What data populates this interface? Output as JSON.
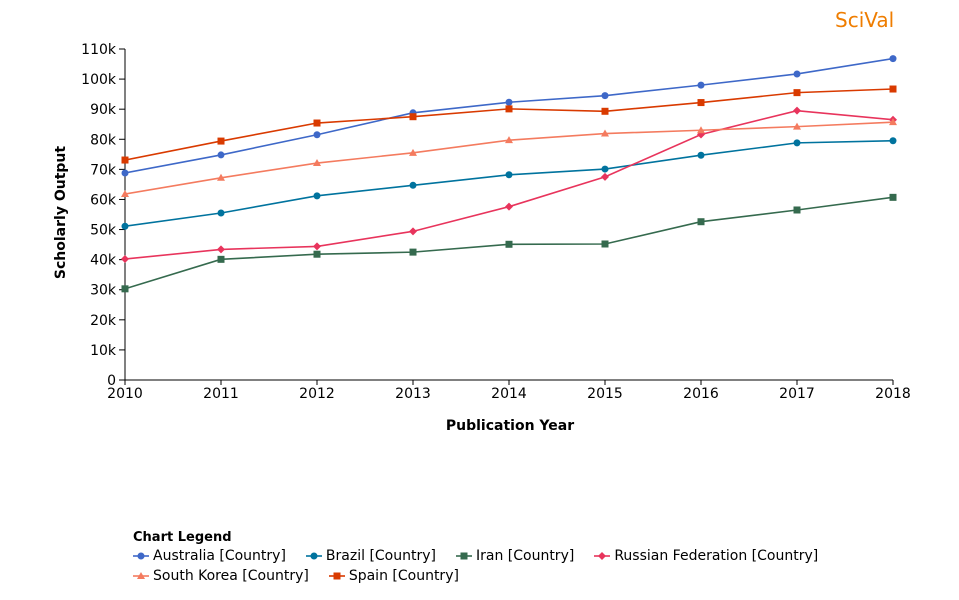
{
  "brand": {
    "name": "SciVal",
    "color": "#ef7d00"
  },
  "chart_data": {
    "type": "line",
    "title": "",
    "xlabel": "Publication Year",
    "ylabel": "Scholarly Output",
    "x": [
      2010,
      2011,
      2012,
      2013,
      2014,
      2015,
      2016,
      2017,
      2018
    ],
    "ylim": [
      0,
      110000
    ],
    "yticks": [
      0,
      10000,
      20000,
      30000,
      40000,
      50000,
      60000,
      70000,
      80000,
      90000,
      100000,
      110000
    ],
    "ytick_labels": [
      "0",
      "10k",
      "20k",
      "30k",
      "40k",
      "50k",
      "60k",
      "70k",
      "80k",
      "90k",
      "100k",
      "110k"
    ],
    "grid": false,
    "legend_title": "Chart Legend",
    "legend_position": "bottom-left",
    "series": [
      {
        "name": "Australia [Country]",
        "color": "#3e68c8",
        "marker": "circle",
        "values": [
          68800,
          74800,
          81500,
          88800,
          92300,
          94500,
          98000,
          101700,
          106800
        ]
      },
      {
        "name": "Brazil [Country]",
        "color": "#00739e",
        "marker": "circle",
        "values": [
          51100,
          55500,
          61200,
          64700,
          68200,
          70100,
          74700,
          78800,
          79500
        ]
      },
      {
        "name": "Iran [Country]",
        "color": "#356a4e",
        "marker": "square",
        "values": [
          30300,
          40100,
          41800,
          42500,
          45100,
          45200,
          52600,
          56500,
          60700
        ]
      },
      {
        "name": "Russian Federation [Country]",
        "color": "#e8345c",
        "marker": "diamond",
        "values": [
          40200,
          43400,
          44400,
          49400,
          57600,
          67500,
          81600,
          89500,
          86500
        ]
      },
      {
        "name": "South Korea [Country]",
        "color": "#f47b5f",
        "marker": "triangle",
        "values": [
          61800,
          67200,
          72100,
          75500,
          79700,
          81900,
          83000,
          84200,
          85700
        ]
      },
      {
        "name": "Spain [Country]",
        "color": "#d93a00",
        "marker": "square",
        "values": [
          73100,
          79400,
          85400,
          87500,
          90100,
          89300,
          92200,
          95500,
          96700
        ]
      }
    ]
  }
}
